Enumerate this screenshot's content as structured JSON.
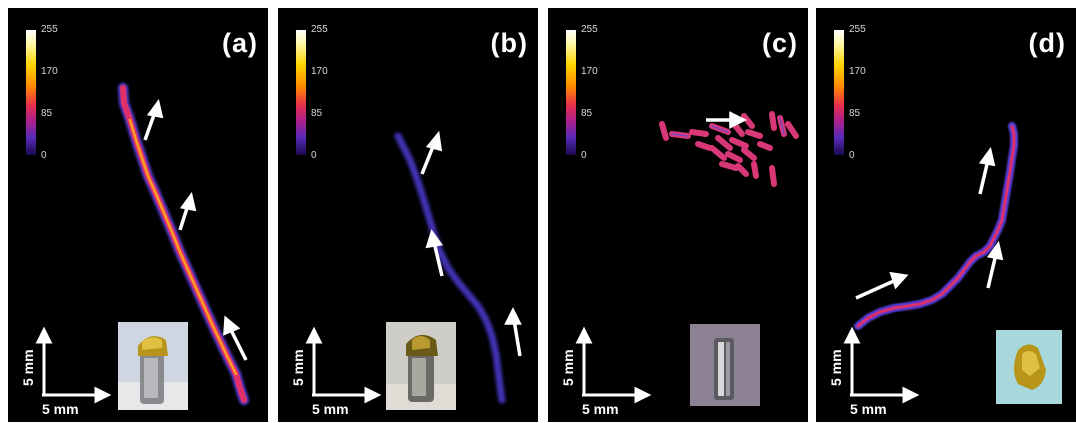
{
  "panels": [
    {
      "label": "(a)",
      "ticks": [
        "255",
        "170",
        "85",
        "0"
      ],
      "scale_x": "5 mm",
      "scale_y": "5 mm"
    },
    {
      "label": "(b)",
      "ticks": [
        "255",
        "170",
        "85",
        "0"
      ],
      "scale_x": "5 mm",
      "scale_y": "5 mm"
    },
    {
      "label": "(c)",
      "ticks": [
        "255",
        "170",
        "85",
        "0"
      ],
      "scale_x": "5 mm",
      "scale_y": "5 mm"
    },
    {
      "label": "(d)",
      "ticks": [
        "255",
        "170",
        "85",
        "0"
      ],
      "scale_x": "5 mm",
      "scale_y": "5 mm"
    }
  ],
  "colors": {
    "background": "#000000",
    "track_hot": "#ff9a1a",
    "track_mid": "#e0306a",
    "track_cool": "#5a3ad0",
    "arrow": "#ffffff"
  },
  "colormap": "black-purple-red-orange-yellow-white"
}
